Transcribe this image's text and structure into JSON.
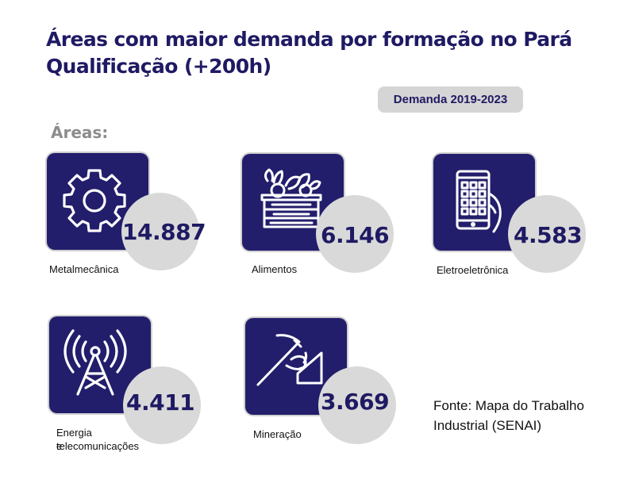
{
  "header": {
    "title_line1": "Áreas com maior demanda por formação no Pará",
    "title_line2": "Qualificação (+200h)"
  },
  "badge": {
    "label": "Demanda 2019-2023"
  },
  "section": {
    "label": "Áreas:"
  },
  "areas": [
    {
      "name": "Metalmecânica",
      "value": "14.887",
      "icon": "gear-icon"
    },
    {
      "name": "Alimentos",
      "value": "6.146",
      "icon": "vegetable-crate-icon"
    },
    {
      "name": "Eletroeletrônica",
      "value": "4.583",
      "icon": "smartphone-hand-icon"
    },
    {
      "name": "Energia e",
      "name_line2": "telecomunicações",
      "value": "4.411",
      "icon": "antenna-tower-icon"
    },
    {
      "name": "Mineração",
      "value": "3.669",
      "icon": "pickaxe-icon"
    }
  ],
  "source": {
    "line1": "Fonte: Mapa do Trabalho",
    "line2": "Industrial (SENAI)"
  },
  "colors": {
    "navy": "#221e6b",
    "text_navy": "#1f1a63",
    "bubble_gray": "#d9d9d9",
    "badge_gray": "#d5d5d5"
  }
}
